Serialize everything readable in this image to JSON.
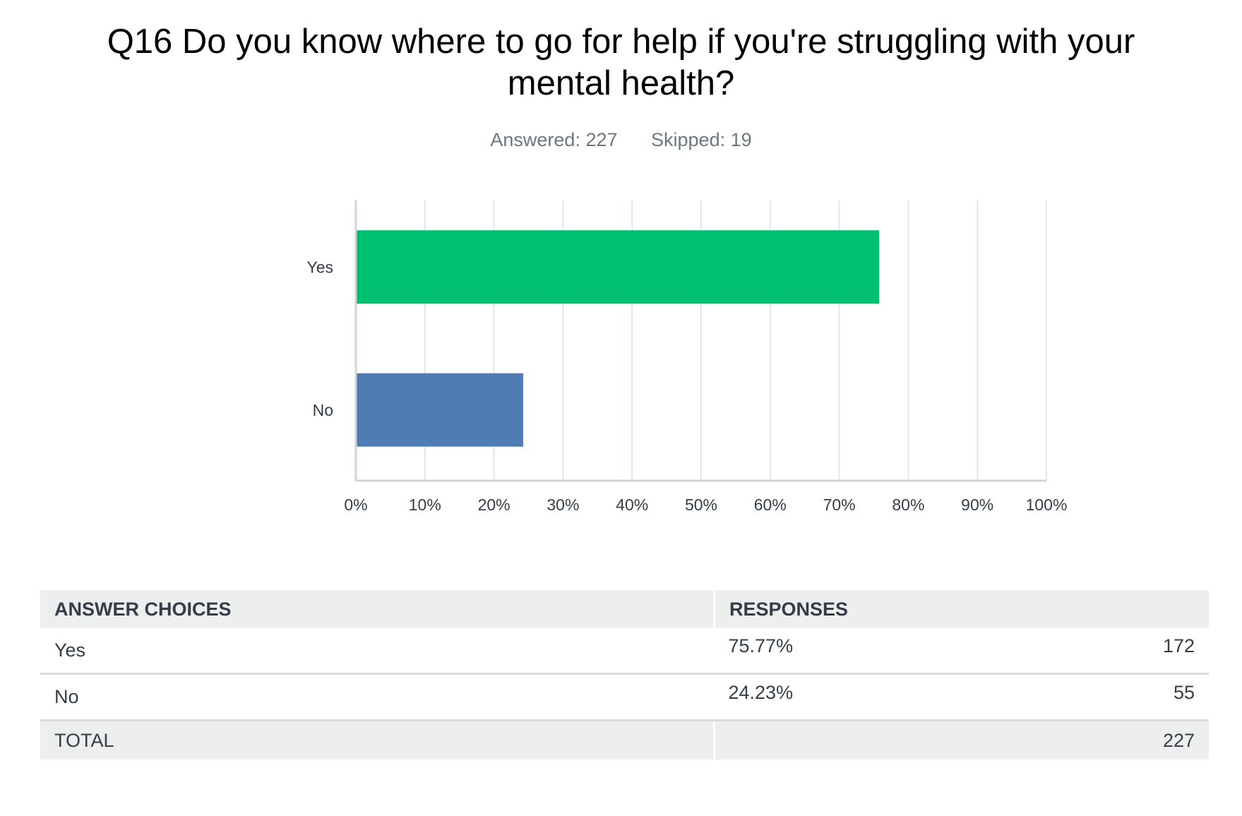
{
  "header": {
    "title": "Q16 Do you know where to go for help if you're struggling with your mental health?",
    "answered_label": "Answered: 227",
    "skipped_label": "Skipped: 19"
  },
  "colors": {
    "yes": "#00bf6f",
    "no": "#507cb6",
    "grid": "#e3e6e8",
    "axis": "#d0d4d6",
    "tick_text": "#333e48"
  },
  "chart_data": {
    "type": "bar",
    "orientation": "horizontal",
    "categories": [
      "Yes",
      "No"
    ],
    "values": [
      75.77,
      24.23
    ],
    "xlim": [
      0,
      100
    ],
    "x_ticks": [
      "0%",
      "10%",
      "20%",
      "30%",
      "40%",
      "50%",
      "60%",
      "70%",
      "80%",
      "90%",
      "100%"
    ],
    "grid": true,
    "title": "",
    "xlabel": "",
    "ylabel": ""
  },
  "table": {
    "headers": [
      "ANSWER CHOICES",
      "RESPONSES"
    ],
    "rows": [
      {
        "choice": "Yes",
        "percent": "75.77%",
        "count": "172"
      },
      {
        "choice": "No",
        "percent": "24.23%",
        "count": "55"
      }
    ],
    "total_label": "TOTAL",
    "total_count": "227"
  }
}
